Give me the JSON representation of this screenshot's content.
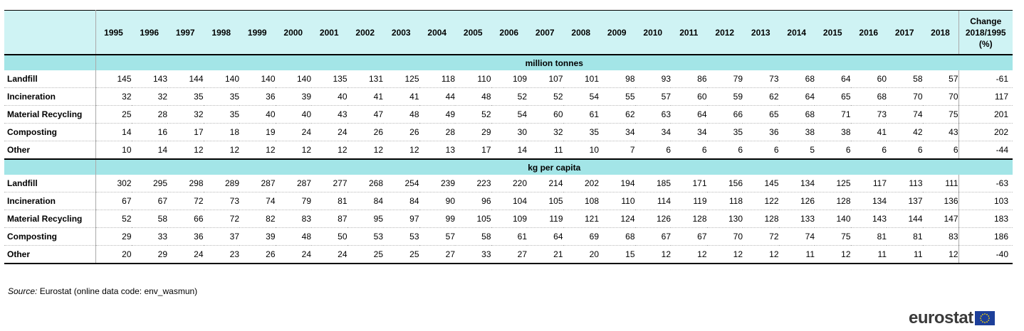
{
  "chart_data": {
    "type": "table",
    "corner": "",
    "columns": [
      "1995",
      "1996",
      "1997",
      "1998",
      "1999",
      "2000",
      "2001",
      "2002",
      "2003",
      "2004",
      "2005",
      "2006",
      "2007",
      "2008",
      "2009",
      "2010",
      "2011",
      "2012",
      "2013",
      "2014",
      "2015",
      "2016",
      "2017",
      "2018"
    ],
    "change_header": [
      "Change",
      "2018/1995",
      "(%)"
    ],
    "sections": [
      {
        "unit": "million tonnes",
        "rows": [
          {
            "label": "Landfill",
            "values": [
              145,
              143,
              144,
              140,
              140,
              140,
              135,
              131,
              125,
              118,
              110,
              109,
              107,
              101,
              98,
              93,
              86,
              79,
              73,
              68,
              64,
              60,
              58,
              57
            ],
            "change": -61
          },
          {
            "label": "Incineration",
            "values": [
              32,
              32,
              35,
              35,
              36,
              39,
              40,
              41,
              41,
              44,
              48,
              52,
              52,
              54,
              55,
              57,
              60,
              59,
              62,
              64,
              65,
              68,
              70,
              70
            ],
            "change": 117
          },
          {
            "label": "Material Recycling",
            "values": [
              25,
              28,
              32,
              35,
              40,
              40,
              43,
              47,
              48,
              49,
              52,
              54,
              60,
              61,
              62,
              63,
              64,
              66,
              65,
              68,
              71,
              73,
              74,
              75
            ],
            "change": 201
          },
          {
            "label": "Composting",
            "values": [
              14,
              16,
              17,
              18,
              19,
              24,
              24,
              26,
              26,
              28,
              29,
              30,
              32,
              35,
              34,
              34,
              34,
              35,
              36,
              38,
              38,
              41,
              42,
              43
            ],
            "change": 202
          },
          {
            "label": "Other",
            "values": [
              10,
              14,
              12,
              12,
              12,
              12,
              12,
              12,
              12,
              13,
              17,
              14,
              11,
              10,
              7,
              6,
              6,
              6,
              6,
              5,
              6,
              6,
              6,
              6
            ],
            "change": -44
          }
        ]
      },
      {
        "unit": "kg per capita",
        "rows": [
          {
            "label": "Landfill",
            "values": [
              302,
              295,
              298,
              289,
              287,
              287,
              277,
              268,
              254,
              239,
              223,
              220,
              214,
              202,
              194,
              185,
              171,
              156,
              145,
              134,
              125,
              117,
              113,
              111
            ],
            "change": -63
          },
          {
            "label": "Incineration",
            "values": [
              67,
              67,
              72,
              73,
              74,
              79,
              81,
              84,
              84,
              90,
              96,
              104,
              105,
              108,
              110,
              114,
              119,
              118,
              122,
              126,
              128,
              134,
              137,
              136
            ],
            "change": 103
          },
          {
            "label": "Material Recycling",
            "values": [
              52,
              58,
              66,
              72,
              82,
              83,
              87,
              95,
              97,
              99,
              105,
              109,
              119,
              121,
              124,
              126,
              128,
              130,
              128,
              133,
              140,
              143,
              144,
              147
            ],
            "change": 183
          },
          {
            "label": "Composting",
            "values": [
              29,
              33,
              36,
              37,
              39,
              48,
              50,
              53,
              53,
              57,
              58,
              61,
              64,
              69,
              68,
              67,
              67,
              70,
              72,
              74,
              75,
              81,
              81,
              83
            ],
            "change": 186
          },
          {
            "label": "Other",
            "values": [
              20,
              29,
              24,
              23,
              26,
              24,
              24,
              25,
              25,
              27,
              33,
              27,
              21,
              20,
              15,
              12,
              12,
              12,
              12,
              11,
              12,
              11,
              11,
              12
            ],
            "change": -40
          }
        ]
      }
    ]
  },
  "source": {
    "label": "Source:",
    "text": "Eurostat (online data code: env_wasmun)"
  },
  "logo": {
    "text": "eurostat",
    "flag_icon": "eu-flag-icon",
    "flag_color": "#1d3f9a",
    "star_color": "#ffdd00"
  },
  "colors": {
    "header_bg": "#cff3f4",
    "unit_row_bg": "#a3e5e7"
  }
}
